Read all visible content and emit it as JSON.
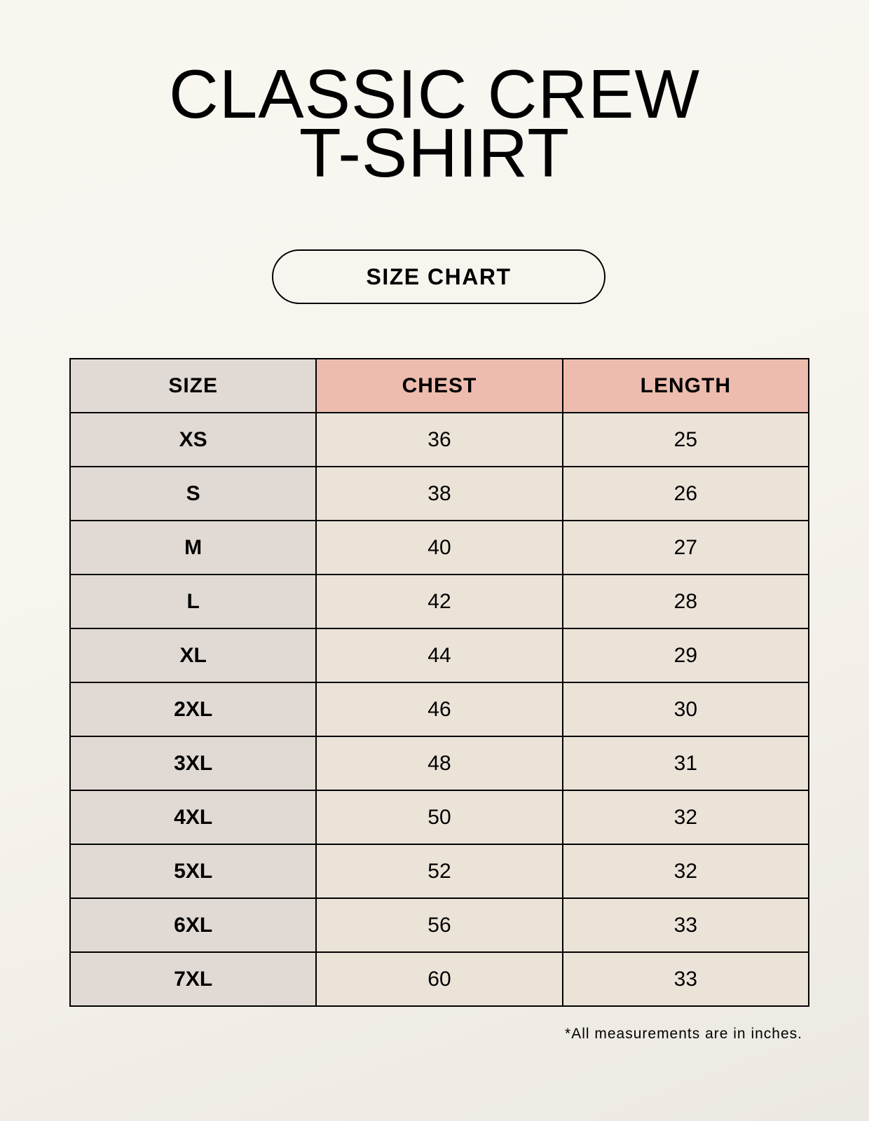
{
  "title": {
    "line1": "CLASSIC CREW",
    "line2": "T-SHIRT"
  },
  "badge": "SIZE CHART",
  "table": {
    "headers": [
      "SIZE",
      "CHEST",
      "LENGTH"
    ],
    "rows": [
      [
        "XS",
        "36",
        "25"
      ],
      [
        "S",
        "38",
        "26"
      ],
      [
        "M",
        "40",
        "27"
      ],
      [
        "L",
        "42",
        "28"
      ],
      [
        "XL",
        "44",
        "29"
      ],
      [
        "2XL",
        "46",
        "30"
      ],
      [
        "3XL",
        "48",
        "31"
      ],
      [
        "4XL",
        "50",
        "32"
      ],
      [
        "5XL",
        "52",
        "32"
      ],
      [
        "6XL",
        "56",
        "33"
      ],
      [
        "7XL",
        "60",
        "33"
      ]
    ]
  },
  "footnote": "*All measurements are in inches.",
  "colors": {
    "header_size_bg": "#e1d9d3",
    "header_measure_bg": "#edbcae",
    "value_bg": "#ebe3d8"
  }
}
